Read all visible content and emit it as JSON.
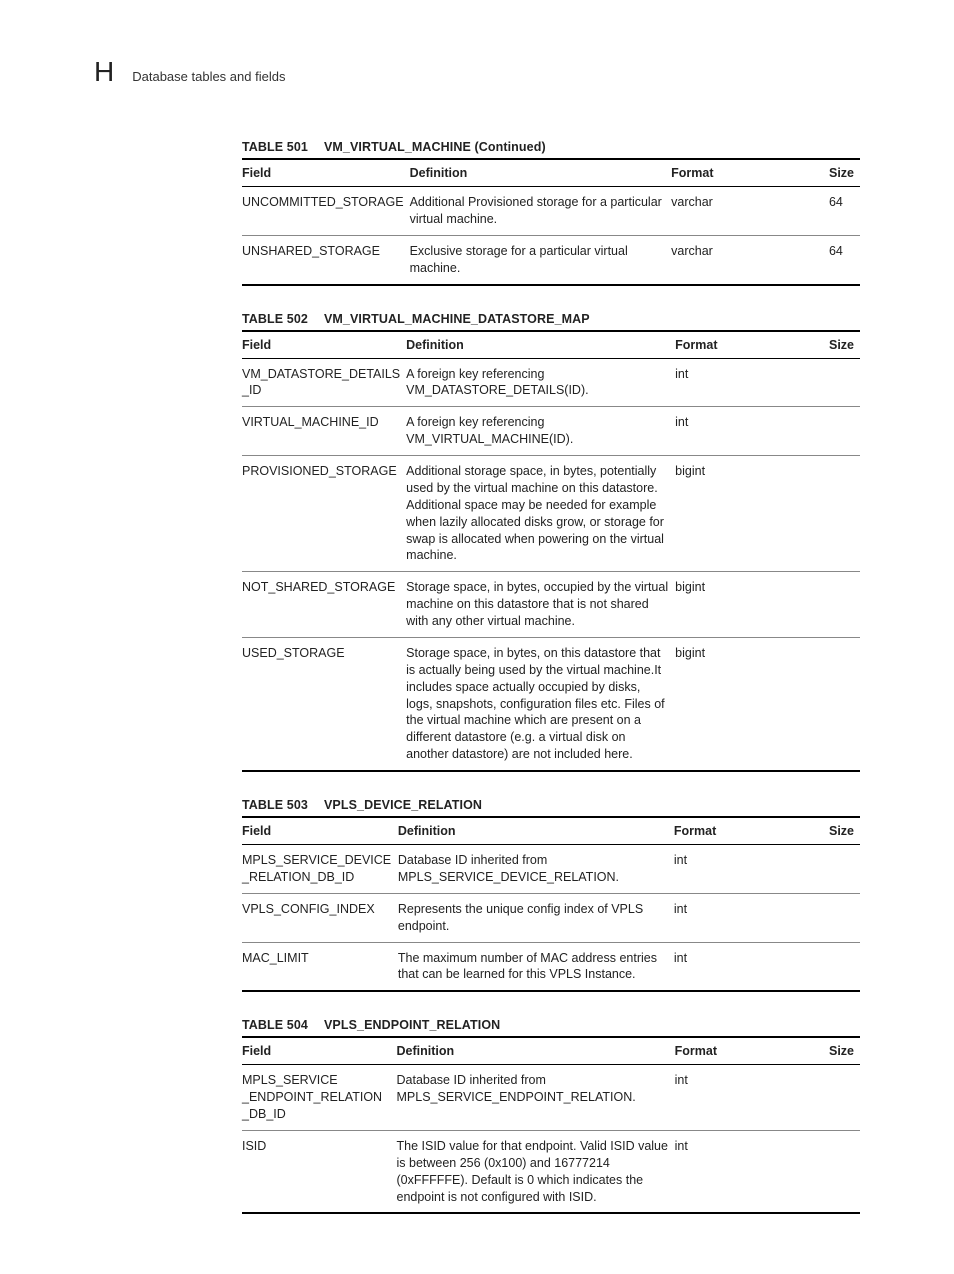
{
  "header": {
    "appendix_letter": "H",
    "section_title": "Database tables and fields"
  },
  "columns": {
    "field": "Field",
    "definition": "Definition",
    "format": "Format",
    "size": "Size"
  },
  "tables": [
    {
      "number": "TABLE 501",
      "name": "VM_VIRTUAL_MACHINE (Continued)",
      "rows": [
        {
          "field": "UNCOMMITTED_STORAGE",
          "definition": "Additional Provisioned storage for a particular virtual machine.",
          "format": "varchar",
          "size": "64"
        },
        {
          "field": "UNSHARED_STORAGE",
          "definition": "Exclusive storage for a particular virtual machine.",
          "format": "varchar",
          "size": "64"
        }
      ]
    },
    {
      "number": "TABLE 502",
      "name": "VM_VIRTUAL_MACHINE_DATASTORE_MAP",
      "rows": [
        {
          "field": "VM_DATASTORE_DETAILS_ID",
          "definition": "A foreign key referencing VM_DATASTORE_DETAILS(ID).",
          "format": "int",
          "size": ""
        },
        {
          "field": "VIRTUAL_MACHINE_ID",
          "definition": "A foreign key referencing VM_VIRTUAL_MACHINE(ID).",
          "format": "int",
          "size": ""
        },
        {
          "field": "PROVISIONED_STORAGE",
          "definition": "Additional storage space, in bytes, potentially used by the virtual machine on this datastore. Additional space may be needed for example when lazily allocated disks grow, or storage for swap is allocated when powering on the virtual machine.",
          "format": "bigint",
          "size": ""
        },
        {
          "field": "NOT_SHARED_STORAGE",
          "definition": "Storage space, in bytes, occupied by the virtual machine on this datastore that is not shared with any other virtual machine.",
          "format": "bigint",
          "size": ""
        },
        {
          "field": "USED_STORAGE",
          "definition": "Storage space, in bytes, on this datastore that is actually being used by the virtual machine.It includes space actually occupied by disks, logs, snapshots, configuration files etc. Files of the virtual machine which are present on a different datastore (e.g. a virtual disk on another datastore) are not included here.",
          "format": "bigint",
          "size": ""
        }
      ]
    },
    {
      "number": "TABLE 503",
      "name": "VPLS_DEVICE_RELATION",
      "rows": [
        {
          "field": "MPLS_SERVICE_DEVICE_RELATION_DB_ID",
          "definition": "Database ID inherited from MPLS_SERVICE_DEVICE_RELATION.",
          "format": "int",
          "size": ""
        },
        {
          "field": "VPLS_CONFIG_INDEX",
          "definition": "Represents the unique config index of VPLS endpoint.",
          "format": "int",
          "size": ""
        },
        {
          "field": "MAC_LIMIT",
          "definition": "The maximum number of MAC address entries that can be learned for this VPLS Instance.",
          "format": "int",
          "size": ""
        }
      ]
    },
    {
      "number": "TABLE 504",
      "name": "VPLS_ENDPOINT_RELATION",
      "rows": [
        {
          "field": "MPLS_SERVICE_ENDPOINT_RELATION_DB_ID",
          "definition": "Database ID inherited from MPLS_SERVICE_ENDPOINT_RELATION.",
          "format": "int",
          "size": ""
        },
        {
          "field": "ISID",
          "definition": "The ISID value for that endpoint. Valid ISID value is between 256 (0x100) and 16777214 (0xFFFFFE). Default is 0 which indicates the endpoint is not configured with ISID.",
          "format": "int",
          "size": ""
        }
      ]
    }
  ]
}
